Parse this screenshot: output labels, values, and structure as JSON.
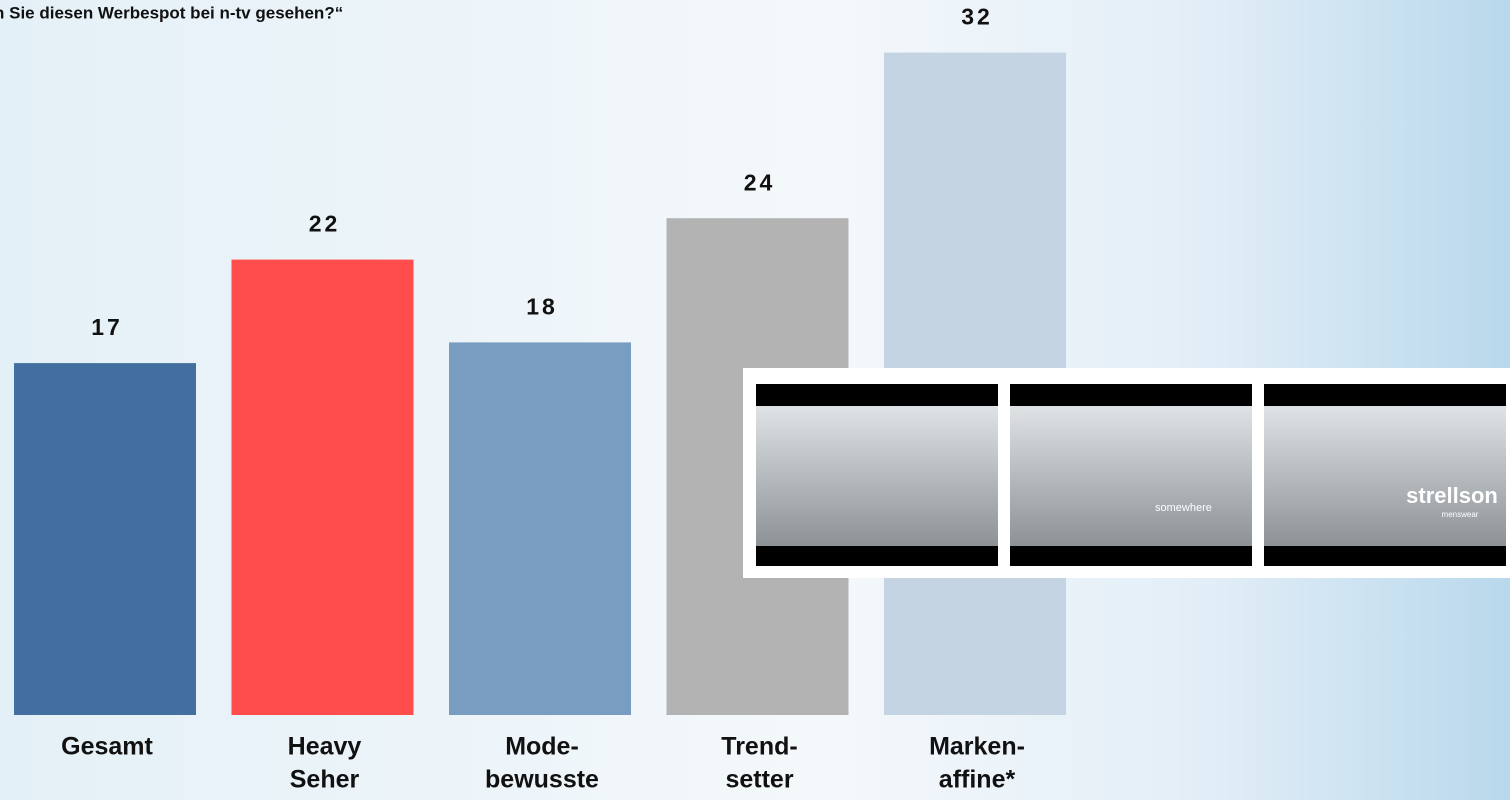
{
  "chart_data": {
    "type": "bar",
    "title": "n Sie diesen Werbespot bei n-tv gesehen?“",
    "categories": [
      [
        "Gesamt"
      ],
      [
        "Heavy",
        "Seher"
      ],
      [
        "Mode-",
        "bewusste"
      ],
      [
        "Trend-",
        "setter"
      ],
      [
        "Marken-",
        "affine*"
      ]
    ],
    "values": [
      17,
      22,
      18,
      24,
      32
    ],
    "colors": [
      "#426f9f",
      "#ff4d4d",
      "#789dc0",
      "#b3b3b3",
      "#c5d4e3"
    ]
  },
  "overlay": {
    "captions": [
      "somewhere",
      "strellson",
      "menswear"
    ]
  }
}
